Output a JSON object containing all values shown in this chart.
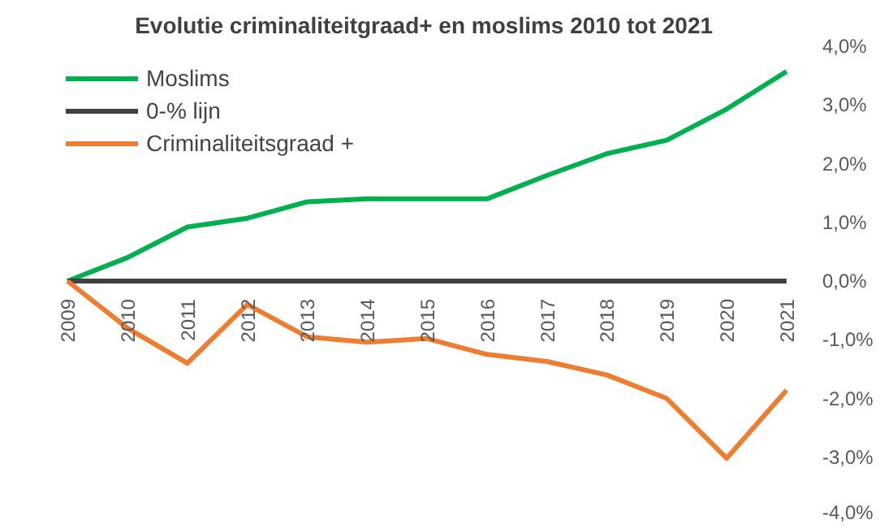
{
  "chart_data": {
    "type": "line",
    "title": "Evolutie criminaliteitgraad+  en moslims 2010 tot 2021",
    "categories": [
      "2009",
      "2010",
      "2011",
      "2012",
      "2013",
      "2014",
      "2015",
      "2016",
      "2017",
      "2018",
      "2019",
      "2020",
      "2021"
    ],
    "series": [
      {
        "name": "Moslims",
        "color": "#00b050",
        "values": [
          0,
          0.4,
          0.92,
          1.07,
          1.35,
          1.4,
          1.4,
          1.4,
          1.8,
          2.17,
          2.4,
          2.93,
          3.57
        ]
      },
      {
        "name": "0-% lijn",
        "color": "#404040",
        "values": [
          0,
          0,
          0,
          0,
          0,
          0,
          0,
          0,
          0,
          0,
          0,
          0,
          0
        ]
      },
      {
        "name": "Criminaliteitsgraad +",
        "color": "#ed7d31",
        "values": [
          0,
          -0.8,
          -1.4,
          -0.4,
          -0.95,
          -1.04,
          -0.98,
          -1.25,
          -1.37,
          -1.6,
          -2.0,
          -3.02,
          -1.86
        ]
      }
    ],
    "ylim": [
      -4,
      4
    ],
    "yticks": [
      {
        "value": -4,
        "label": "-4,0%"
      },
      {
        "value": -3,
        "label": "-3,0%"
      },
      {
        "value": -2,
        "label": "-2,0%"
      },
      {
        "value": -1,
        "label": "-1,0%"
      },
      {
        "value": 0,
        "label": "0,0%"
      },
      {
        "value": 1,
        "label": "1,0%"
      },
      {
        "value": 2,
        "label": "2,0%"
      },
      {
        "value": 3,
        "label": "3,0%"
      },
      {
        "value": 4,
        "label": "4,0%"
      }
    ],
    "legend": "top left",
    "grid": false,
    "marker": "none",
    "line_style": "solid"
  }
}
